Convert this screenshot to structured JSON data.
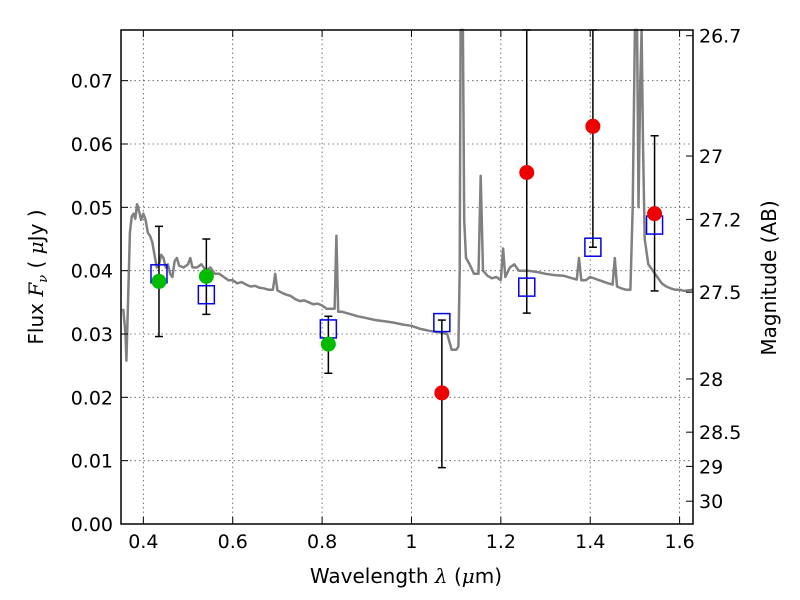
{
  "chart_data": {
    "type": "scatter",
    "xlabel_text": "Wavelength",
    "xlabel_symbol": "λ",
    "xlabel_unit_open": " (",
    "xlabel_unit_mu": "μ",
    "xlabel_unit_close": "m)",
    "ylabel_text": "Flux",
    "ylabel_symbol": "F",
    "ylabel_sub": "ν",
    "ylabel_unit_open": " ( ",
    "ylabel_unit_mu": "μ",
    "ylabel_unit_close": "Jy )",
    "y2label": "Magnitude (AB)",
    "xlim": [
      0.35,
      1.63
    ],
    "ylim": [
      0.0,
      0.078
    ],
    "grid": true,
    "x_ticks": [
      0.4,
      0.6,
      0.8,
      1.0,
      1.2,
      1.4,
      1.6
    ],
    "x_tick_labels": [
      "0.4",
      "0.6",
      "0.8",
      "1",
      "1.2",
      "1.4",
      "1.6"
    ],
    "y_ticks": [
      0.0,
      0.01,
      0.02,
      0.03,
      0.04,
      0.05,
      0.06,
      0.07
    ],
    "y_tick_labels": [
      "0.00",
      "0.01",
      "0.02",
      "0.03",
      "0.04",
      "0.05",
      "0.06",
      "0.07"
    ],
    "y2_ticks": [
      {
        "label": "26.7",
        "flux": 0.0771
      },
      {
        "label": "27",
        "flux": 0.0581
      },
      {
        "label": "27.2",
        "flux": 0.0481
      },
      {
        "label": "27.5",
        "flux": 0.0366
      },
      {
        "label": "28",
        "flux": 0.0229
      },
      {
        "label": "28.5",
        "flux": 0.0145
      },
      {
        "label": "29",
        "flux": 0.0091
      },
      {
        "label": "30",
        "flux": 0.0036
      }
    ],
    "colors": {
      "model": "#808080",
      "squares": "#0000ee",
      "green": "#00bb00",
      "red": "#ee0000",
      "errorbar": "#000000",
      "grid": "#555555"
    },
    "series": [
      {
        "marker": "circle",
        "color": "#00bb00",
        "points": [
          {
            "x": 0.435,
            "y": 0.0383,
            "yerr_low": 0.0296,
            "yerr_high": 0.047
          },
          {
            "x": 0.541,
            "y": 0.0391,
            "yerr_low": 0.0331,
            "yerr_high": 0.045
          },
          {
            "x": 0.814,
            "y": 0.0284,
            "yerr_low": 0.0238,
            "yerr_high": 0.0328
          }
        ]
      },
      {
        "marker": "circle",
        "color": "#ee0000",
        "points": [
          {
            "x": 1.068,
            "y": 0.0207,
            "yerr_low": 0.0089,
            "yerr_high": 0.0322
          },
          {
            "x": 1.258,
            "y": 0.0555,
            "yerr_low": 0.0333,
            "yerr_high": 0.078
          },
          {
            "x": 1.406,
            "y": 0.0628,
            "yerr_low": 0.0437,
            "yerr_high": 0.078
          },
          {
            "x": 1.544,
            "y": 0.049,
            "yerr_low": 0.0368,
            "yerr_high": 0.0613
          }
        ]
      },
      {
        "marker": "square",
        "color": "#0000ee",
        "points": [
          {
            "x": 0.435,
            "y": 0.0395
          },
          {
            "x": 0.541,
            "y": 0.0362
          },
          {
            "x": 0.814,
            "y": 0.0308
          },
          {
            "x": 1.068,
            "y": 0.0318
          },
          {
            "x": 1.258,
            "y": 0.0374
          },
          {
            "x": 1.406,
            "y": 0.0437
          },
          {
            "x": 1.544,
            "y": 0.0472
          }
        ]
      }
    ],
    "model_spectrum": [
      [
        0.355,
        0.034
      ],
      [
        0.36,
        0.03
      ],
      [
        0.362,
        0.0258
      ],
      [
        0.366,
        0.036
      ],
      [
        0.37,
        0.046
      ],
      [
        0.374,
        0.0485
      ],
      [
        0.378,
        0.049
      ],
      [
        0.382,
        0.0482
      ],
      [
        0.386,
        0.0505
      ],
      [
        0.39,
        0.0495
      ],
      [
        0.395,
        0.048
      ],
      [
        0.4,
        0.049
      ],
      [
        0.405,
        0.048
      ],
      [
        0.41,
        0.046
      ],
      [
        0.415,
        0.0455
      ],
      [
        0.42,
        0.0445
      ],
      [
        0.425,
        0.0425
      ],
      [
        0.43,
        0.0405
      ],
      [
        0.435,
        0.041
      ],
      [
        0.44,
        0.0425
      ],
      [
        0.445,
        0.042
      ],
      [
        0.45,
        0.0405
      ],
      [
        0.455,
        0.041
      ],
      [
        0.46,
        0.0395
      ],
      [
        0.465,
        0.039
      ],
      [
        0.47,
        0.0415
      ],
      [
        0.475,
        0.042
      ],
      [
        0.48,
        0.0408
      ],
      [
        0.49,
        0.0405
      ],
      [
        0.5,
        0.041
      ],
      [
        0.505,
        0.042
      ],
      [
        0.51,
        0.0405
      ],
      [
        0.52,
        0.0405
      ],
      [
        0.53,
        0.041
      ],
      [
        0.54,
        0.04
      ],
      [
        0.55,
        0.0405
      ],
      [
        0.56,
        0.0395
      ],
      [
        0.57,
        0.0395
      ],
      [
        0.58,
        0.039
      ],
      [
        0.59,
        0.0385
      ],
      [
        0.6,
        0.0385
      ],
      [
        0.61,
        0.038
      ],
      [
        0.62,
        0.0382
      ],
      [
        0.63,
        0.0378
      ],
      [
        0.64,
        0.0375
      ],
      [
        0.65,
        0.0376
      ],
      [
        0.66,
        0.0373
      ],
      [
        0.67,
        0.0372
      ],
      [
        0.68,
        0.037
      ],
      [
        0.69,
        0.037
      ],
      [
        0.695,
        0.0395
      ],
      [
        0.7,
        0.0369
      ],
      [
        0.71,
        0.0365
      ],
      [
        0.72,
        0.0362
      ],
      [
        0.73,
        0.036
      ],
      [
        0.74,
        0.0355
      ],
      [
        0.75,
        0.0352
      ],
      [
        0.76,
        0.0353
      ],
      [
        0.77,
        0.035
      ],
      [
        0.78,
        0.0347
      ],
      [
        0.79,
        0.0348
      ],
      [
        0.8,
        0.0345
      ],
      [
        0.81,
        0.034
      ],
      [
        0.82,
        0.034
      ],
      [
        0.828,
        0.034
      ],
      [
        0.832,
        0.0455
      ],
      [
        0.836,
        0.0335
      ],
      [
        0.845,
        0.0335
      ],
      [
        0.86,
        0.0332
      ],
      [
        0.88,
        0.0328
      ],
      [
        0.9,
        0.0325
      ],
      [
        0.92,
        0.0322
      ],
      [
        0.94,
        0.032
      ],
      [
        0.96,
        0.0318
      ],
      [
        0.98,
        0.0315
      ],
      [
        1.0,
        0.0313
      ],
      [
        1.02,
        0.0308
      ],
      [
        1.04,
        0.0305
      ],
      [
        1.06,
        0.0303
      ],
      [
        1.08,
        0.03
      ],
      [
        1.09,
        0.0275
      ],
      [
        1.1,
        0.0275
      ],
      [
        1.105,
        0.028
      ],
      [
        1.108,
        0.04
      ],
      [
        1.11,
        0.078
      ],
      [
        1.115,
        0.078
      ],
      [
        1.118,
        0.048
      ],
      [
        1.122,
        0.042
      ],
      [
        1.13,
        0.041
      ],
      [
        1.14,
        0.0395
      ],
      [
        1.15,
        0.0395
      ],
      [
        1.155,
        0.055
      ],
      [
        1.16,
        0.04
      ],
      [
        1.17,
        0.0392
      ],
      [
        1.18,
        0.0388
      ],
      [
        1.19,
        0.039
      ],
      [
        1.2,
        0.0385
      ],
      [
        1.205,
        0.0435
      ],
      [
        1.21,
        0.039
      ],
      [
        1.22,
        0.0405
      ],
      [
        1.23,
        0.041
      ],
      [
        1.24,
        0.04
      ],
      [
        1.26,
        0.04
      ],
      [
        1.28,
        0.0398
      ],
      [
        1.3,
        0.0395
      ],
      [
        1.32,
        0.0393
      ],
      [
        1.34,
        0.0392
      ],
      [
        1.36,
        0.0388
      ],
      [
        1.37,
        0.0386
      ],
      [
        1.375,
        0.042
      ],
      [
        1.38,
        0.0385
      ],
      [
        1.39,
        0.0385
      ],
      [
        1.4,
        0.039
      ],
      [
        1.42,
        0.0385
      ],
      [
        1.44,
        0.038
      ],
      [
        1.45,
        0.0378
      ],
      [
        1.455,
        0.042
      ],
      [
        1.46,
        0.0375
      ],
      [
        1.47,
        0.0372
      ],
      [
        1.48,
        0.037
      ],
      [
        1.49,
        0.037
      ],
      [
        1.495,
        0.05
      ],
      [
        1.5,
        0.078
      ],
      [
        1.505,
        0.078
      ],
      [
        1.508,
        0.05
      ],
      [
        1.512,
        0.07
      ],
      [
        1.515,
        0.078
      ],
      [
        1.518,
        0.06
      ],
      [
        1.522,
        0.045
      ],
      [
        1.53,
        0.041
      ],
      [
        1.54,
        0.04
      ],
      [
        1.55,
        0.039
      ],
      [
        1.56,
        0.038
      ],
      [
        1.57,
        0.0375
      ],
      [
        1.58,
        0.0372
      ],
      [
        1.59,
        0.037
      ],
      [
        1.6,
        0.037
      ],
      [
        1.61,
        0.0368
      ],
      [
        1.63,
        0.037
      ]
    ]
  }
}
